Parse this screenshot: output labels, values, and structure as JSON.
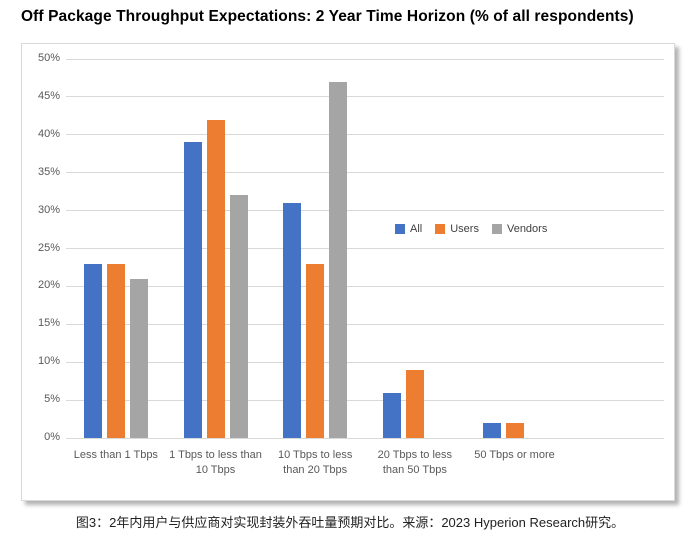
{
  "page": {
    "title": "Off Package Throughput Expectations: 2 Year Time Horizon (% of all respondents)",
    "caption": "图3：2年内用户与供应商对实现封装外吞吐量预期对比。来源：2023 Hyperion Research研究。"
  },
  "chart_data": {
    "type": "bar",
    "title": "Off Package Throughput Expectations: 2 Year Time Horizon (% of all respondents)",
    "categories": [
      "Less than 1 Tbps",
      "1 Tbps to less than 10 Tbps",
      "10 Tbps to less than 20 Tbps",
      "20 Tbps to less than 50 Tbps",
      "50 Tbps or more"
    ],
    "category_label_lines": [
      [
        "Less than 1 Tbps"
      ],
      [
        "1 Tbps to less than",
        "10 Tbps"
      ],
      [
        "10 Tbps to less",
        "than 20 Tbps"
      ],
      [
        "20 Tbps to less",
        "than 50 Tbps"
      ],
      [
        "50 Tbps or more"
      ]
    ],
    "series": [
      {
        "name": "All",
        "color": "#4472C4",
        "values": [
          23,
          39,
          31,
          6,
          2
        ]
      },
      {
        "name": "Users",
        "color": "#ED7D31",
        "values": [
          23,
          42,
          23,
          9,
          2
        ]
      },
      {
        "name": "Vendors",
        "color": "#A5A5A5",
        "values": [
          21,
          32,
          47,
          0,
          0
        ]
      }
    ],
    "xlabel": "",
    "ylabel": "",
    "ylim": [
      0,
      50
    ],
    "ytick_step": 5,
    "ytick_suffix": "%",
    "grid": true,
    "legend_position": "inside-right",
    "legend_labels": [
      "All",
      "Users",
      "Vendors"
    ]
  },
  "style": {
    "grid_color": "#d9d9d9",
    "axis_text_color": "#595959",
    "legend_text_color": "#404040"
  }
}
